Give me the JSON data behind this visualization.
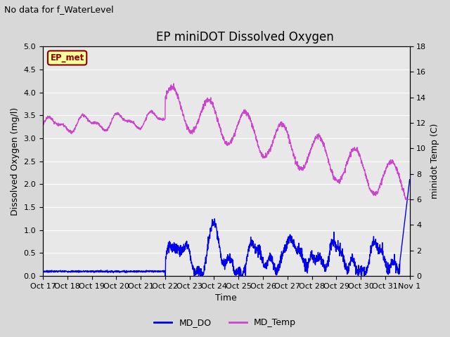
{
  "title": "EP miniDOT Dissolved Oxygen",
  "top_left_note": "No data for f_WaterLevel",
  "ep_met_label": "EP_met",
  "xlabel": "Time",
  "ylabel_left": "Dissolved Oxygen (mg/l)",
  "ylabel_right": "minidot Temp (C)",
  "ylim_left": [
    0.0,
    5.0
  ],
  "ylim_right": [
    0,
    18
  ],
  "yticks_left": [
    0.0,
    0.5,
    1.0,
    1.5,
    2.0,
    2.5,
    3.0,
    3.5,
    4.0,
    4.5,
    5.0
  ],
  "yticks_right": [
    0,
    2,
    4,
    6,
    8,
    10,
    12,
    14,
    16,
    18
  ],
  "xtick_labels": [
    "Oct 17",
    "Oct 18",
    "Oct 19",
    "Oct 20",
    "Oct 21",
    "Oct 22",
    "Oct 23",
    "Oct 24",
    "Oct 25",
    "Oct 26",
    "Oct 27",
    "Oct 28",
    "Oct 29",
    "Oct 30",
    "Oct 31",
    "Nov 1"
  ],
  "do_color": "#0000ee",
  "temp_color": "#cc44cc",
  "plot_bg_color": "#e8e8e8",
  "grid_color": "#ffffff",
  "ep_met_bg": "#ffff99",
  "ep_met_border": "#8b0000",
  "ep_met_text": "#8b0000",
  "note_fontsize": 9,
  "title_fontsize": 12,
  "label_fontsize": 9,
  "tick_fontsize": 8
}
